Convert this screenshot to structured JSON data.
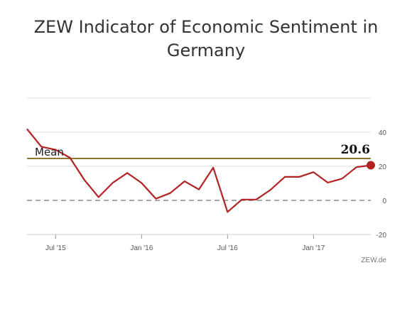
{
  "chart_data": {
    "type": "line",
    "title_lines": [
      "ZEW Indicator of Economic Sentiment in",
      "Germany"
    ],
    "xlabel": "",
    "ylabel": "",
    "x": [
      "2015-05",
      "2015-06",
      "2015-07",
      "2015-08",
      "2015-09",
      "2015-10",
      "2015-11",
      "2015-12",
      "2016-01",
      "2016-02",
      "2016-03",
      "2016-04",
      "2016-05",
      "2016-06",
      "2016-07",
      "2016-08",
      "2016-09",
      "2016-10",
      "2016-11",
      "2016-12",
      "2017-01",
      "2017-02",
      "2017-03",
      "2017-04",
      "2017-05"
    ],
    "values": [
      41.9,
      31.5,
      29.7,
      25.0,
      12.1,
      1.9,
      10.4,
      16.1,
      10.2,
      1.0,
      4.3,
      11.2,
      6.4,
      19.2,
      -6.8,
      0.5,
      0.5,
      6.2,
      13.8,
      13.8,
      16.6,
      10.4,
      12.8,
      19.5,
      20.6
    ],
    "x_ticks": [
      {
        "at": "2015-07",
        "label": "Jul '15"
      },
      {
        "at": "2016-01",
        "label": "Jan '16"
      },
      {
        "at": "2016-07",
        "label": "Jul '16"
      },
      {
        "at": "2017-01",
        "label": "Jan '17"
      }
    ],
    "y_ticks": [
      40,
      20,
      0,
      -20
    ],
    "ylim": [
      -20,
      60
    ],
    "grid": true,
    "mean": {
      "value": 24.6,
      "label": "Mean"
    },
    "last_value_label": "20.6",
    "credit": "ZEW.de",
    "colors": {
      "line": "#b22222",
      "mean": "#8b7a2b",
      "zero": "#888888",
      "grid": "#dddddd"
    }
  }
}
